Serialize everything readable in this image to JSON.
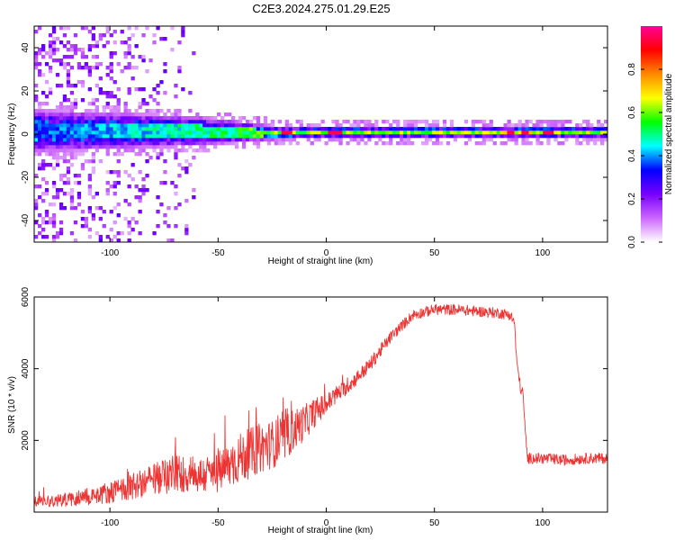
{
  "title": "C2E3.2024.275.01.29.E25",
  "chart_data": [
    {
      "type": "heatmap",
      "xlabel": "Height of straight line (km)",
      "ylabel": "Frequency (Hz)",
      "xlim": [
        -135,
        130
      ],
      "ylim": [
        -50,
        50
      ],
      "xticks": [
        -100,
        -50,
        0,
        50,
        100
      ],
      "yticks": [
        -40,
        -20,
        0,
        20,
        40
      ],
      "xtick_labels": [
        "-100",
        "-50",
        "0",
        "50",
        "100"
      ],
      "ytick_labels": [
        "-40",
        "-20",
        "0",
        "20",
        "40"
      ],
      "colorbar": {
        "label": "Normalized spectral amplitude",
        "range": [
          0,
          1
        ],
        "ticks": [
          0,
          0.2,
          0.4,
          0.6,
          0.8
        ],
        "tick_labels": [
          "0.0",
          "0.2",
          "0.4",
          "0.6",
          "0.8"
        ],
        "colors": [
          "#ffffff",
          "#cc66ff",
          "#7700ff",
          "#0000ff",
          "#00ffff",
          "#00ff00",
          "#ffff00",
          "#ff8800",
          "#ff0000",
          "#ff0099"
        ]
      },
      "band": {
        "center_hz": [
          [
            -135,
            1.5
          ],
          [
            -60,
            1.5
          ],
          [
            -20,
            0.5
          ],
          [
            0,
            1
          ],
          [
            50,
            1
          ],
          [
            100,
            1
          ],
          [
            130,
            1
          ]
        ],
        "halfwidth_hz": [
          [
            -135,
            10
          ],
          [
            -60,
            7
          ],
          [
            -30,
            4
          ],
          [
            -20,
            3
          ],
          [
            130,
            3
          ]
        ],
        "peak_amplitude": [
          [
            -135,
            0.35
          ],
          [
            -80,
            0.45
          ],
          [
            -50,
            0.5
          ],
          [
            -20,
            0.6
          ],
          [
            0,
            0.6
          ],
          [
            50,
            0.6
          ],
          [
            100,
            0.65
          ],
          [
            130,
            0.6
          ]
        ],
        "strong_spots_km": [
          -18,
          2,
          5,
          85,
          92,
          103
        ],
        "noise_region_km": [
          -135,
          -60
        ]
      }
    },
    {
      "type": "line",
      "xlabel": "Height of straight line (km)",
      "ylabel": "SNR (10 * v/v)",
      "xlim": [
        -135,
        130
      ],
      "ylim": [
        0,
        6000
      ],
      "xticks": [
        -100,
        -50,
        0,
        50,
        100
      ],
      "yticks": [
        2000,
        4000,
        6000
      ],
      "xtick_labels": [
        "-100",
        "-50",
        "0",
        "50",
        "100"
      ],
      "ytick_labels": [
        "2000",
        "4000",
        "6000"
      ],
      "color": "#ee3333",
      "series": [
        {
          "x": [
            -135,
            -120,
            -110,
            -100,
            -90,
            -80,
            -75,
            -70,
            -60,
            -50,
            -45,
            -40,
            -30,
            -20,
            -15,
            -10,
            -5,
            0,
            5,
            10,
            15,
            20,
            25,
            30,
            35,
            40,
            50,
            60,
            70,
            80,
            85,
            87,
            88,
            90,
            91,
            92,
            93,
            95,
            100,
            110,
            120,
            130
          ],
          "values": [
            300,
            350,
            450,
            550,
            700,
            900,
            1000,
            1100,
            1000,
            1100,
            1300,
            1500,
            1800,
            2000,
            2300,
            2500,
            2800,
            3000,
            3300,
            3500,
            3800,
            4100,
            4500,
            4900,
            5200,
            5500,
            5650,
            5650,
            5600,
            5550,
            5500,
            5300,
            4200,
            3400,
            3300,
            2200,
            1500,
            1500,
            1500,
            1450,
            1500,
            1500
          ],
          "noise_amplitude": [
            150,
            200,
            250,
            300,
            350,
            450,
            500,
            550,
            500,
            600,
            650,
            700,
            700,
            650,
            600,
            500,
            400,
            300,
            250,
            200,
            200,
            200,
            180,
            160,
            150,
            150,
            150,
            150,
            150,
            150,
            150,
            150,
            150,
            150,
            150,
            150,
            150,
            150,
            150,
            150,
            150,
            150
          ]
        }
      ]
    }
  ]
}
